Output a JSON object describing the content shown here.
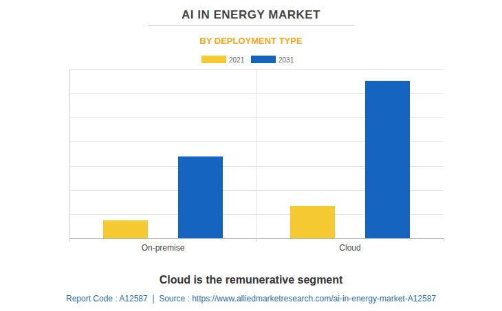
{
  "chart_data": {
    "type": "bar",
    "title": "AI IN ENERGY MARKET",
    "subtitle": "BY DEPLOYMENT TYPE",
    "categories": [
      "On-premise",
      "Cloud"
    ],
    "series": [
      {
        "name": "2021",
        "color": "#f4c932",
        "values": [
          0.74,
          1.34
        ]
      },
      {
        "name": "2031",
        "color": "#1565c0",
        "values": [
          3.39,
          6.52
        ]
      }
    ],
    "ylim": [
      0,
      7
    ],
    "yticks": [
      0,
      1,
      2,
      3,
      4,
      5,
      6,
      7
    ],
    "grid": true,
    "tick_labels": "x",
    "legend": "top",
    "caption": "Cloud is the remunerative segment",
    "source": "Report Code : A12587  |  Source : https://www.alliedmarketresearch.com/ai-in-energy-market-A12587"
  }
}
